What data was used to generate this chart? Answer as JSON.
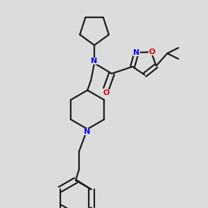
{
  "background_color": "#dcdcdc",
  "bond_color": "#1a1a1a",
  "nitrogen_color": "#0000ee",
  "oxygen_color": "#dd0000",
  "line_width": 1.6,
  "figsize": [
    3.0,
    3.0
  ],
  "dpi": 100,
  "xlim": [
    0,
    300
  ],
  "ylim": [
    0,
    300
  ]
}
